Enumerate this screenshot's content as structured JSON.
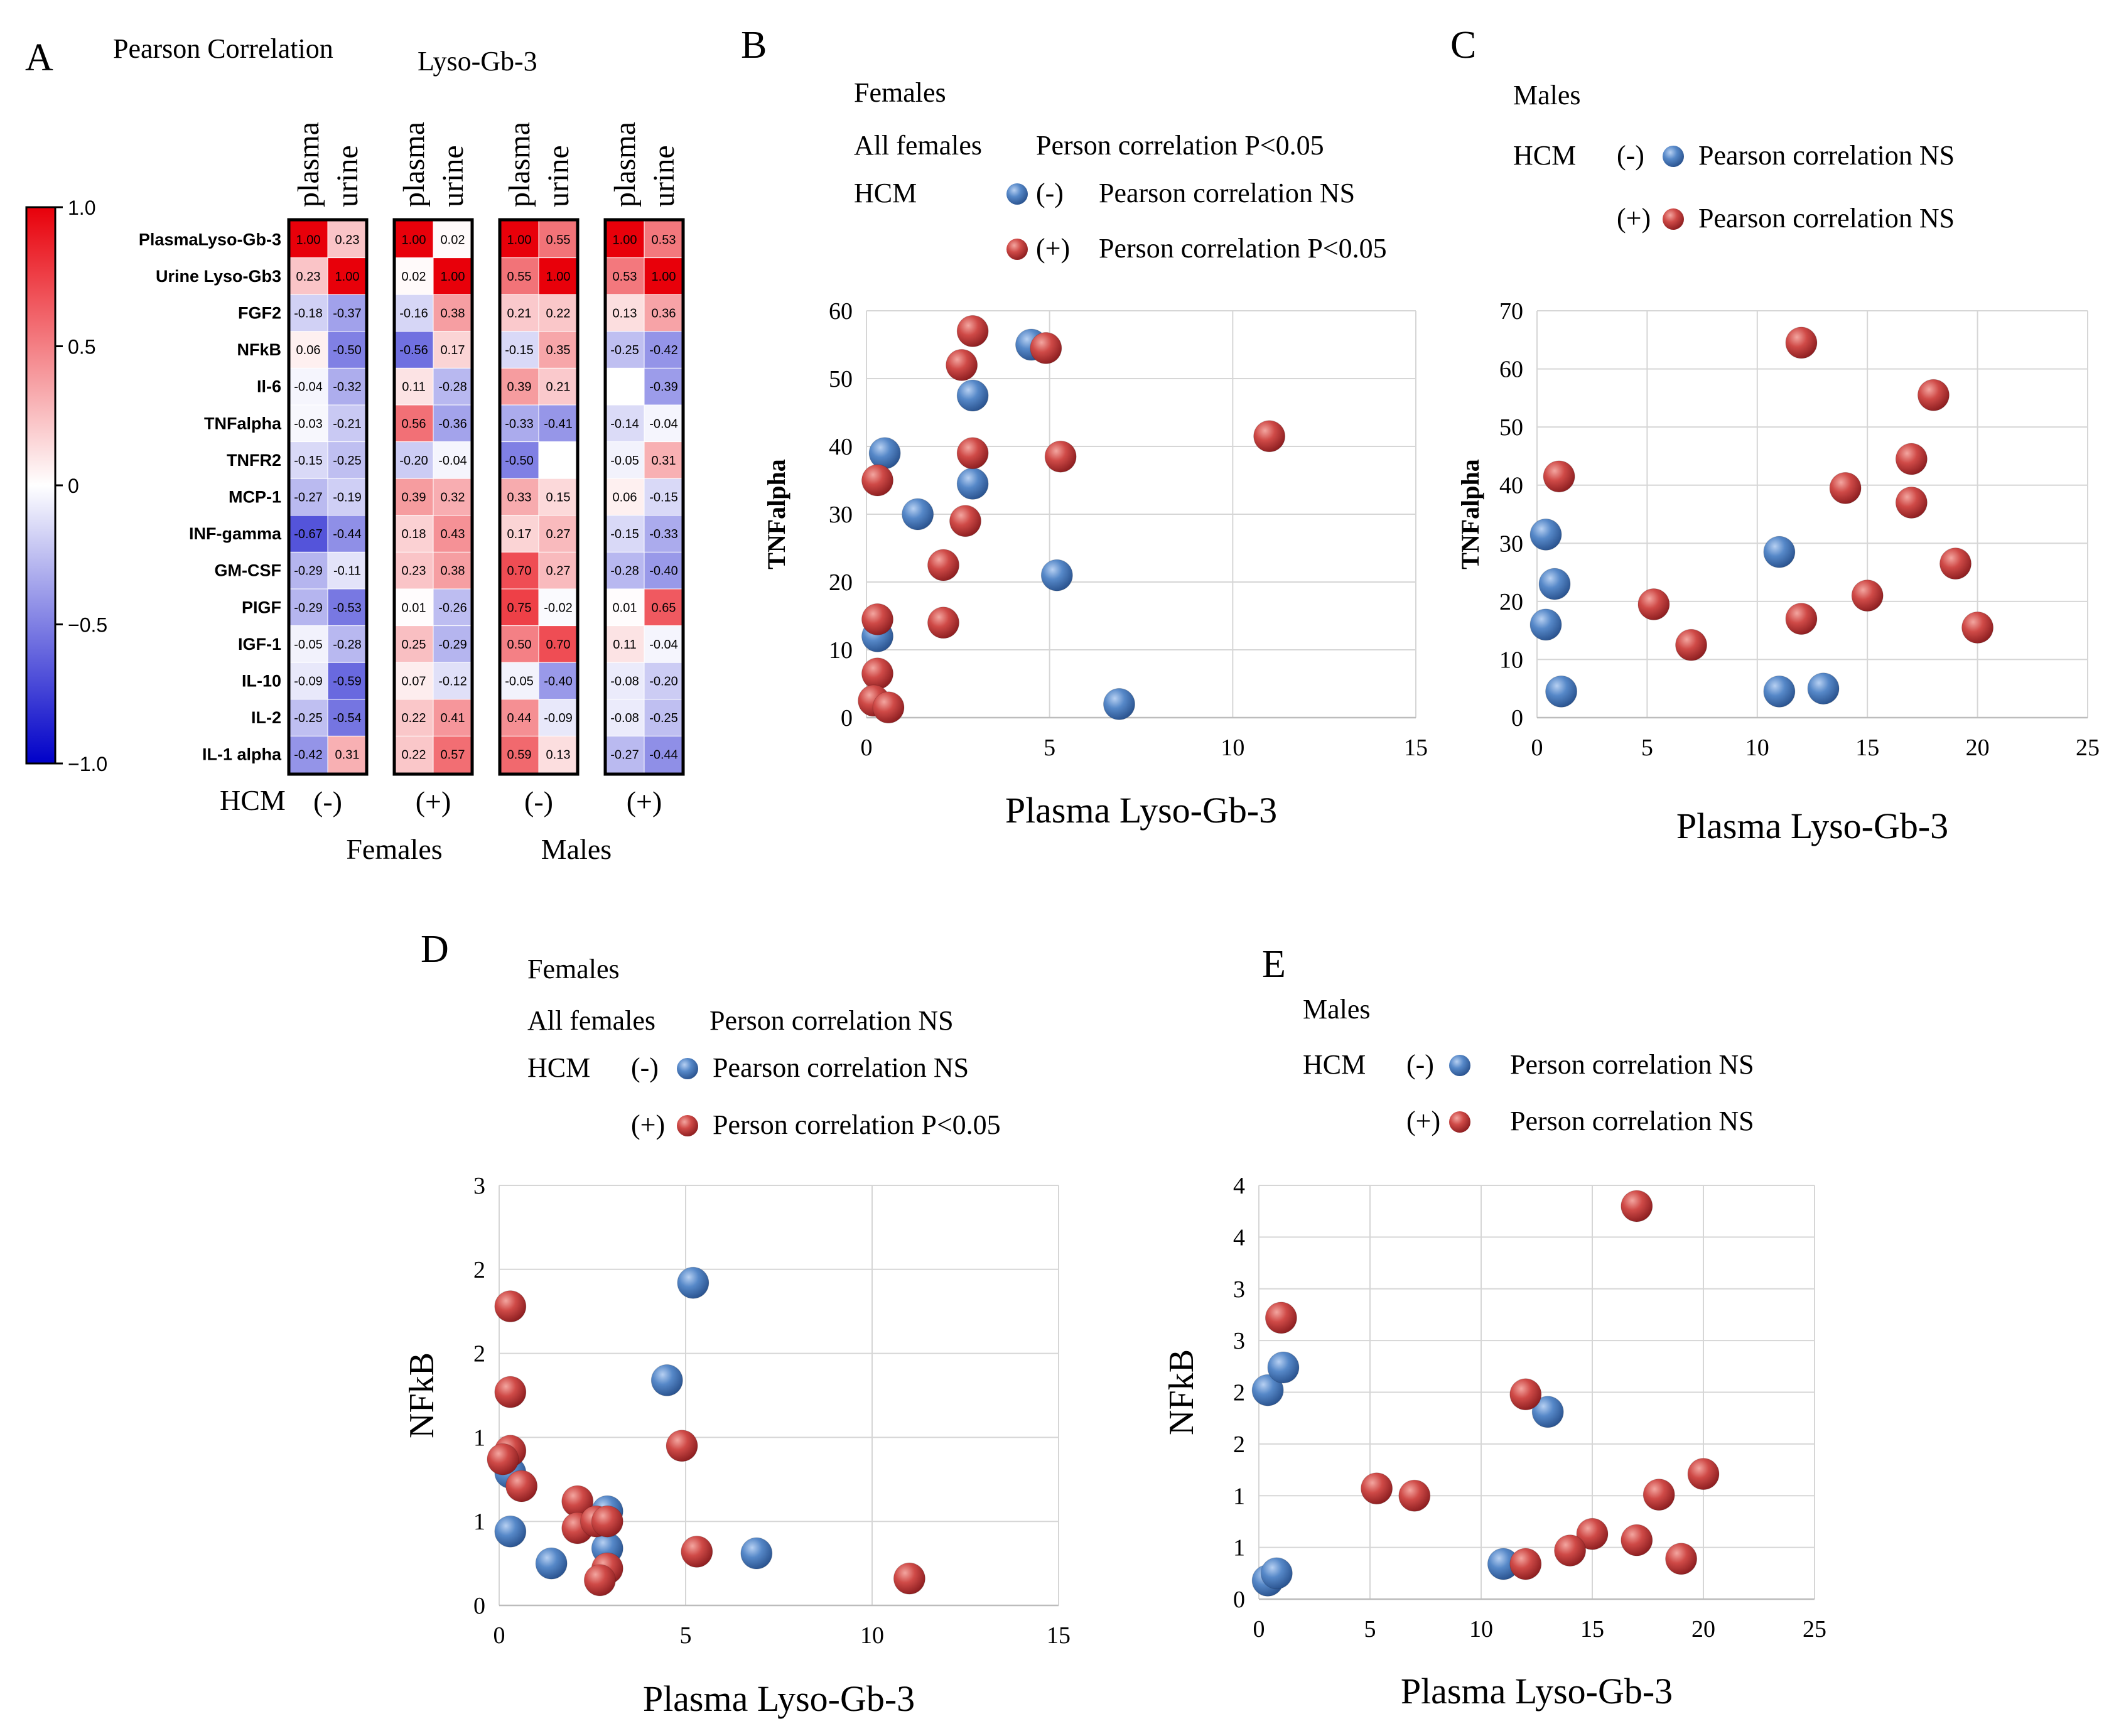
{
  "chart_data": [
    {
      "panel": "A",
      "type": "heatmap",
      "title": "Pearson Correlation",
      "subtitle": "Lyso-Gb-3",
      "col_labels": [
        "plasma",
        "urine"
      ],
      "row_labels": [
        "PlasmaLyso-Gb-3",
        "Urine Lyso-Gb3",
        "FGF2",
        "NFkB",
        "Il-6",
        "TNFalpha",
        "TNFR2",
        "MCP-1",
        "INF-gamma",
        "GM-CSF",
        "PIGF",
        "IGF-1",
        "IL-10",
        "IL-2",
        "IL-1 alpha"
      ],
      "colorbar": {
        "min": -1.0,
        "max": 1.0,
        "ticks": [
          "1.0",
          "0.5",
          "0",
          "−0.5",
          "−1.0"
        ],
        "colors": {
          "low": "#0000c8",
          "mid": "#ffffff",
          "high": "#e8000a"
        }
      },
      "bottom": {
        "hcm_label": "HCM",
        "hcm_groups": [
          "(-)",
          "(+)",
          "(-)",
          "(+)"
        ],
        "sex_groups": [
          "Females",
          "Males"
        ]
      },
      "groups": [
        {
          "sex": "Females",
          "hcm": "(-)",
          "values": [
            [
              1.0,
              0.23
            ],
            [
              0.23,
              1.0
            ],
            [
              -0.18,
              -0.37
            ],
            [
              0.06,
              -0.5
            ],
            [
              -0.04,
              -0.32
            ],
            [
              -0.03,
              -0.21
            ],
            [
              -0.15,
              -0.25
            ],
            [
              -0.27,
              -0.19
            ],
            [
              -0.67,
              -0.44
            ],
            [
              -0.29,
              -0.11
            ],
            [
              -0.29,
              -0.53
            ],
            [
              -0.05,
              -0.28
            ],
            [
              -0.09,
              -0.59
            ],
            [
              -0.25,
              -0.54
            ],
            [
              -0.42,
              0.31
            ]
          ]
        },
        {
          "sex": "Females",
          "hcm": "(+)",
          "values": [
            [
              1.0,
              0.02
            ],
            [
              0.02,
              1.0
            ],
            [
              -0.16,
              0.38
            ],
            [
              -0.56,
              0.17
            ],
            [
              0.11,
              -0.28
            ],
            [
              0.56,
              -0.36
            ],
            [
              -0.2,
              -0.04
            ],
            [
              0.39,
              0.32
            ],
            [
              0.18,
              0.43
            ],
            [
              0.23,
              0.38
            ],
            [
              0.01,
              -0.26
            ],
            [
              0.25,
              -0.29
            ],
            [
              0.07,
              -0.12
            ],
            [
              0.22,
              0.41
            ],
            [
              0.22,
              0.57
            ]
          ]
        },
        {
          "sex": "Males",
          "hcm": "(-)",
          "values": [
            [
              1.0,
              0.55
            ],
            [
              0.55,
              1.0
            ],
            [
              0.21,
              0.22
            ],
            [
              -0.15,
              0.35
            ],
            [
              0.39,
              0.21
            ],
            [
              -0.33,
              -0.41
            ],
            [
              -0.5,
              null
            ],
            [
              0.33,
              0.15
            ],
            [
              0.17,
              0.27
            ],
            [
              0.7,
              0.27
            ],
            [
              0.75,
              -0.02
            ],
            [
              0.5,
              0.7
            ],
            [
              -0.05,
              -0.4
            ],
            [
              0.44,
              -0.09
            ],
            [
              0.59,
              0.13
            ]
          ]
        },
        {
          "sex": "Males",
          "hcm": "(+)",
          "values": [
            [
              1.0,
              0.53
            ],
            [
              0.53,
              1.0
            ],
            [
              0.13,
              0.36
            ],
            [
              -0.25,
              -0.42
            ],
            [
              null,
              -0.39
            ],
            [
              -0.14,
              -0.04
            ],
            [
              -0.05,
              0.31
            ],
            [
              0.06,
              -0.15
            ],
            [
              -0.15,
              -0.33
            ],
            [
              -0.28,
              -0.4
            ],
            [
              0.01,
              0.65
            ],
            [
              0.11,
              -0.04
            ],
            [
              -0.08,
              -0.2
            ],
            [
              -0.08,
              -0.25
            ],
            [
              -0.27,
              -0.44
            ]
          ]
        }
      ]
    },
    {
      "panel": "B",
      "type": "scatter",
      "group_title": "Females",
      "legend_rows": [
        {
          "a": "All females",
          "b": "Person correlation  P<0.05"
        },
        {
          "a": "HCM",
          "b": "(-)",
          "c": "Pearson correlation NS",
          "color": "#4a7cc0"
        },
        {
          "a": "",
          "b": "(+)",
          "c": "Person correlation P<0.05",
          "color": "#c0393b"
        }
      ],
      "xlabel": "Plasma Lyso-Gb-3",
      "ylabel": "TNFalpha",
      "xlim": [
        0,
        15
      ],
      "ylim": [
        0,
        60
      ],
      "xticks": [
        0,
        5,
        10,
        15
      ],
      "yticks": [
        0,
        10,
        20,
        30,
        40,
        50,
        60
      ],
      "series": [
        {
          "name": "HCM (-)",
          "color": "#4a7cc0",
          "points": [
            [
              0.5,
              39
            ],
            [
              1.4,
              30
            ],
            [
              2.9,
              47.5
            ],
            [
              2.9,
              34.5
            ],
            [
              4.5,
              55
            ],
            [
              5.2,
              21
            ],
            [
              6.9,
              2
            ],
            [
              0.3,
              12
            ]
          ]
        },
        {
          "name": "HCM (+)",
          "color": "#c0393b",
          "points": [
            [
              0.3,
              35
            ],
            [
              0.3,
              14.5
            ],
            [
              0.3,
              6.5
            ],
            [
              0.2,
              2.5
            ],
            [
              0.6,
              1.5
            ],
            [
              2.9,
              57
            ],
            [
              2.6,
              52
            ],
            [
              2.9,
              39
            ],
            [
              2.7,
              29
            ],
            [
              2.1,
              22.5
            ],
            [
              2.1,
              14
            ],
            [
              4.9,
              54.5
            ],
            [
              5.3,
              38.5
            ],
            [
              11.0,
              41.5
            ]
          ]
        }
      ]
    },
    {
      "panel": "C",
      "type": "scatter",
      "group_title": "Males",
      "legend_rows": [
        {
          "a": "HCM",
          "b": "(-)",
          "c": "Pearson correlation NS",
          "color": "#4a7cc0"
        },
        {
          "a": "",
          "b": "(+)",
          "c": "Pearson correlation NS",
          "color": "#c0393b"
        }
      ],
      "xlabel": "Plasma Lyso-Gb-3",
      "ylabel": "TNFalpha",
      "xlim": [
        0,
        25
      ],
      "ylim": [
        0,
        70
      ],
      "xticks": [
        0,
        5,
        10,
        15,
        20,
        25
      ],
      "yticks": [
        0,
        10,
        20,
        30,
        40,
        50,
        60,
        70
      ],
      "series": [
        {
          "name": "HCM (-)",
          "color": "#4a7cc0",
          "points": [
            [
              0.4,
              31.5
            ],
            [
              0.8,
              23
            ],
            [
              0.4,
              16
            ],
            [
              1.1,
              4.5
            ],
            [
              11.0,
              28.5
            ],
            [
              11.0,
              4.5
            ],
            [
              13.0,
              5
            ]
          ]
        },
        {
          "name": "HCM (+)",
          "color": "#c0393b",
          "points": [
            [
              1.0,
              41.5
            ],
            [
              5.3,
              19.5
            ],
            [
              7.0,
              12.5
            ],
            [
              12.0,
              64.5
            ],
            [
              12.0,
              17
            ],
            [
              14.0,
              39.5
            ],
            [
              15.0,
              21
            ],
            [
              17.0,
              44.5
            ],
            [
              17.0,
              37
            ],
            [
              18.0,
              55.5
            ],
            [
              19.0,
              26.5
            ],
            [
              20.0,
              15.5
            ]
          ]
        }
      ]
    },
    {
      "panel": "D",
      "type": "scatter",
      "group_title": "Females",
      "legend_rows": [
        {
          "a": "All females",
          "b": "Person correlation  NS"
        },
        {
          "a": "HCM",
          "b": "(-)",
          "c": "Pearson correlation NS",
          "color": "#4a7cc0"
        },
        {
          "a": "",
          "b": "(+)",
          "c": "Person correlation P<0.05",
          "color": "#c0393b"
        }
      ],
      "xlabel": "Plasma Lyso-Gb-3",
      "ylabel": "NFkB",
      "xlim": [
        0,
        15
      ],
      "ylim": [
        0,
        2.5
      ],
      "xticks": [
        0,
        5,
        10,
        15
      ],
      "yticks": [
        0,
        0.5,
        1,
        1.5,
        2,
        2.5
      ],
      "ytick_labels": [
        "0",
        "1",
        "1",
        "2",
        "2",
        "3"
      ],
      "series": [
        {
          "name": "HCM (-)",
          "color": "#4a7cc0",
          "points": [
            [
              5.2,
              1.92
            ],
            [
              4.5,
              1.34
            ],
            [
              0.3,
              0.79
            ],
            [
              0.3,
              0.44
            ],
            [
              1.4,
              0.25
            ],
            [
              2.9,
              0.56
            ],
            [
              2.9,
              0.34
            ],
            [
              6.9,
              0.31
            ]
          ]
        },
        {
          "name": "HCM (+)",
          "color": "#c0393b",
          "points": [
            [
              0.3,
              1.78
            ],
            [
              0.3,
              1.27
            ],
            [
              0.3,
              0.92
            ],
            [
              0.1,
              0.87
            ],
            [
              0.6,
              0.71
            ],
            [
              4.9,
              0.95
            ],
            [
              2.1,
              0.62
            ],
            [
              2.1,
              0.46
            ],
            [
              2.6,
              0.5
            ],
            [
              2.9,
              0.5
            ],
            [
              2.9,
              0.22
            ],
            [
              2.7,
              0.15
            ],
            [
              5.3,
              0.32
            ],
            [
              11.0,
              0.16
            ]
          ]
        }
      ]
    },
    {
      "panel": "E",
      "type": "scatter",
      "group_title": "Males",
      "legend_rows": [
        {
          "a": "HCM",
          "b": "(-)",
          "c": "Person correlation NS",
          "color": "#4a7cc0"
        },
        {
          "a": "",
          "b": "(+)",
          "c": "Person correlation NS",
          "color": "#c0393b"
        }
      ],
      "xlabel": "Plasma Lyso-Gb-3",
      "ylabel": "NFkB",
      "xlim": [
        0,
        25
      ],
      "ylim": [
        0,
        4
      ],
      "xticks": [
        0,
        5,
        10,
        15,
        20,
        25
      ],
      "yticks": [
        0,
        0.5,
        1,
        1.5,
        2,
        2.5,
        3,
        3.5,
        4
      ],
      "ytick_labels": [
        "0",
        "1",
        "1",
        "2",
        "2",
        "3",
        "3",
        "4",
        "4"
      ],
      "series": [
        {
          "name": "HCM (-)",
          "color": "#4a7cc0",
          "points": [
            [
              0.4,
              2.02
            ],
            [
              1.1,
              2.24
            ],
            [
              13.0,
              1.81
            ],
            [
              11.0,
              0.34
            ],
            [
              0.4,
              0.18
            ],
            [
              0.8,
              0.25
            ]
          ]
        },
        {
          "name": "HCM (+)",
          "color": "#c0393b",
          "points": [
            [
              1.0,
              2.72
            ],
            [
              17.0,
              3.8
            ],
            [
              12.0,
              1.98
            ],
            [
              5.3,
              1.07
            ],
            [
              7.0,
              1.0
            ],
            [
              20.0,
              1.21
            ],
            [
              18.0,
              1.01
            ],
            [
              15.0,
              0.63
            ],
            [
              14.0,
              0.47
            ],
            [
              12.0,
              0.34
            ],
            [
              17.0,
              0.57
            ],
            [
              19.0,
              0.39
            ]
          ]
        }
      ]
    }
  ]
}
